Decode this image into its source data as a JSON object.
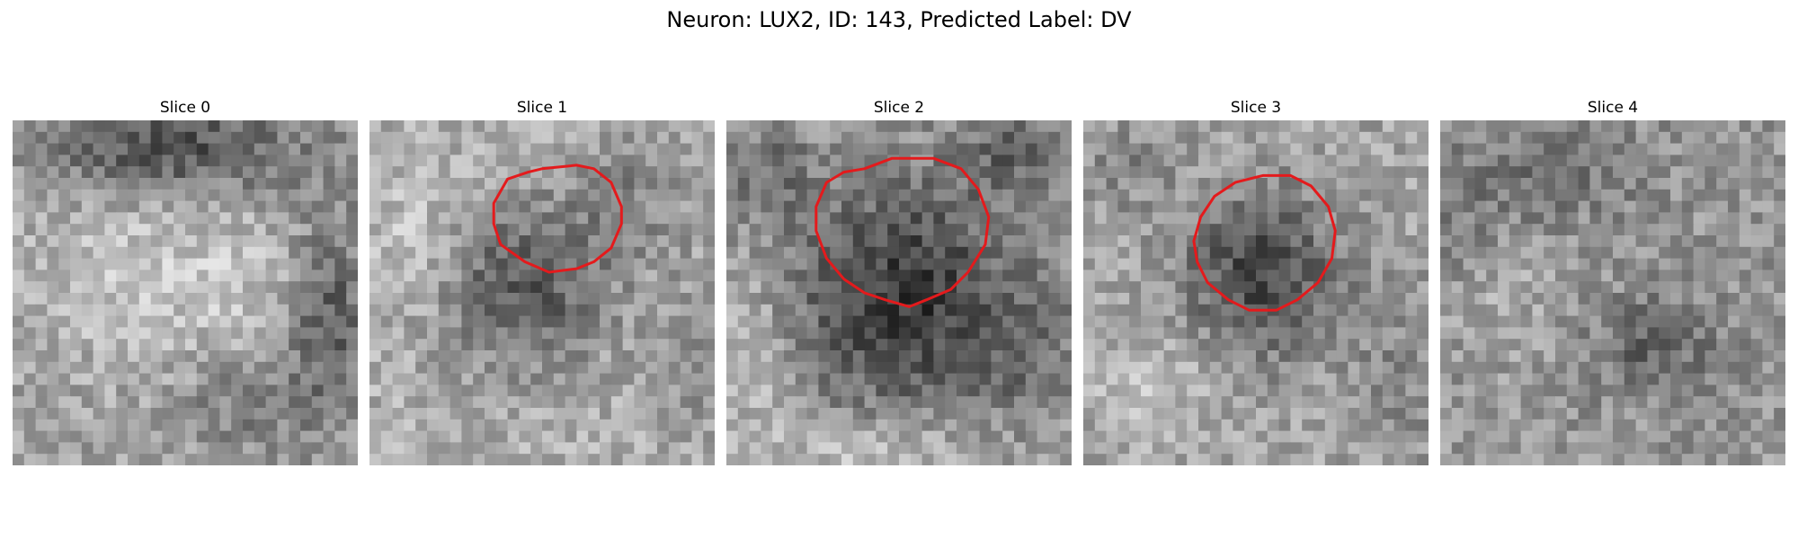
{
  "figure": {
    "suptitle": "Neuron: LUX2, ID: 143, Predicted Label: DV"
  },
  "panels": [
    {
      "title": "Slice 0",
      "has_contour": false
    },
    {
      "title": "Slice 1",
      "has_contour": true
    },
    {
      "title": "Slice 2",
      "has_contour": true
    },
    {
      "title": "Slice 3",
      "has_contour": true
    },
    {
      "title": "Slice 4",
      "has_contour": false
    }
  ],
  "colors": {
    "contour": "#e41a1c",
    "background": "#ffffff"
  }
}
